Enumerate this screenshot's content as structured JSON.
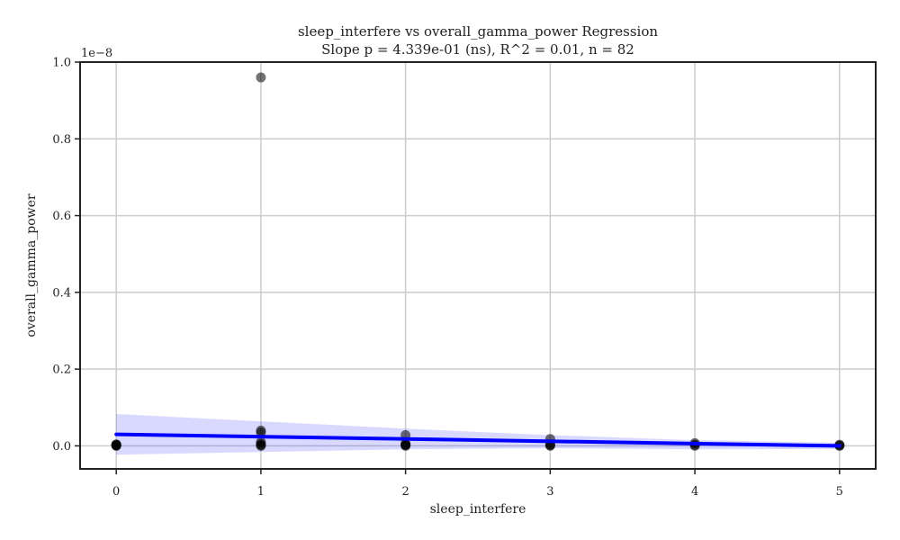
{
  "chart_data": {
    "type": "scatter",
    "title": "sleep_interfere vs overall_gamma_power Regression",
    "subtitle": "Slope p = 4.339e-01 (ns), R^2 = 0.01, n = 82",
    "xlabel": "sleep_interfere",
    "ylabel": "overall_gamma_power",
    "y_offset_label": "1e−8",
    "xlim": [
      -0.25,
      5.25
    ],
    "ylim": [
      -0.06,
      1.0
    ],
    "x_ticks": [
      0,
      1,
      2,
      3,
      4,
      5
    ],
    "x_tick_labels": [
      "0",
      "1",
      "2",
      "3",
      "4",
      "5"
    ],
    "y_ticks": [
      0.0,
      0.2,
      0.4,
      0.6,
      0.8,
      1.0
    ],
    "y_tick_labels": [
      "0.0",
      "0.2",
      "0.4",
      "0.6",
      "0.8",
      "1.0"
    ],
    "grid": true,
    "scatter_series": {
      "x": [
        0,
        0,
        0,
        0,
        0,
        1,
        1,
        1,
        1,
        1,
        1,
        1,
        2,
        2,
        2,
        2,
        2,
        3,
        3,
        3,
        3,
        4,
        4,
        4,
        5,
        5,
        5
      ],
      "y": [
        0.0,
        0.002,
        0.004,
        0.001,
        0.003,
        0.96,
        0.04,
        0.035,
        0.0,
        0.002,
        0.005,
        0.01,
        0.028,
        0.0,
        0.003,
        0.006,
        0.002,
        0.018,
        0.0,
        0.004,
        0.002,
        0.007,
        0.0,
        0.003,
        0.003,
        0.0,
        0.001
      ]
    },
    "regression_line": {
      "x": [
        0,
        5
      ],
      "y": [
        0.03,
        0.0
      ]
    },
    "confidence_band": {
      "x": [
        0,
        1,
        2,
        3,
        4,
        5
      ],
      "upper": [
        0.083,
        0.064,
        0.045,
        0.028,
        0.015,
        0.008
      ],
      "lower": [
        -0.023,
        -0.016,
        -0.009,
        -0.006,
        -0.009,
        -0.008
      ]
    },
    "colors": {
      "line": "#0000ff",
      "points": "#000000",
      "band": "#0000ff"
    }
  }
}
